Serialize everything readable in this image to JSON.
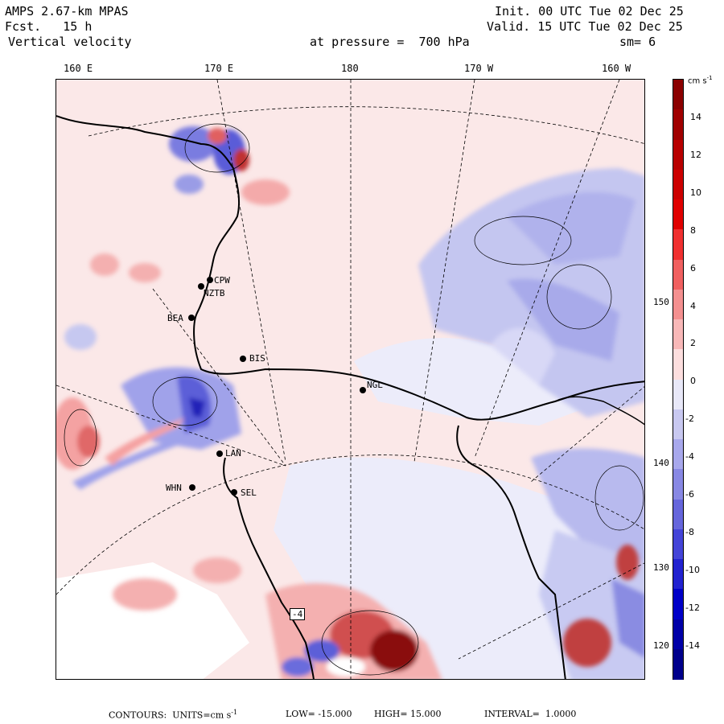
{
  "header": {
    "model": "AMPS 2.67-km MPAS",
    "fcst_label": "Fcst.",
    "fcst_value": "15 h",
    "variable": "Vertical velocity",
    "init": "Init. 00 UTC Tue 02 Dec 25",
    "valid": "Valid. 15 UTC Tue 02 Dec 25",
    "pressure": "at pressure =  700 hPa",
    "smoothing": "sm= 6"
  },
  "longitude_labels": [
    "160 E",
    "170 E",
    "180",
    "170 W",
    "160 W"
  ],
  "latitude_labels": [
    "150 W",
    "140 W",
    "130 W",
    "120 W"
  ],
  "stations": [
    "CPW",
    "NZTB",
    "BEA",
    "BIS",
    "NGL",
    "LAN",
    "WHN",
    "SEL"
  ],
  "contour_label": "-4",
  "colorbar": {
    "units": "cm s",
    "units_exp": "-1",
    "ticks": [
      "14",
      "12",
      "10",
      "8",
      "6",
      "4",
      "2",
      "0",
      "-2",
      "-4",
      "-6",
      "-8",
      "-10",
      "-12",
      "-14"
    ],
    "colors": [
      "#8b0000",
      "#a00000",
      "#b80000",
      "#cc0000",
      "#e00000",
      "#f03030",
      "#f06060",
      "#f49090",
      "#f8b8b8",
      "#fcdede",
      "#e8e8f8",
      "#c8c8f0",
      "#a8a8ec",
      "#8888e4",
      "#6666dc",
      "#4444d8",
      "#2222d0",
      "#0000c8",
      "#0000a8",
      "#00008c"
    ]
  },
  "footer": {
    "contours": "CONTOURS:  UNITS=cm s",
    "units_exp": "-1",
    "low": "LOW= -15.000",
    "high": "HIGH= 15.000",
    "interval": "INTERVAL=  1.0000"
  }
}
